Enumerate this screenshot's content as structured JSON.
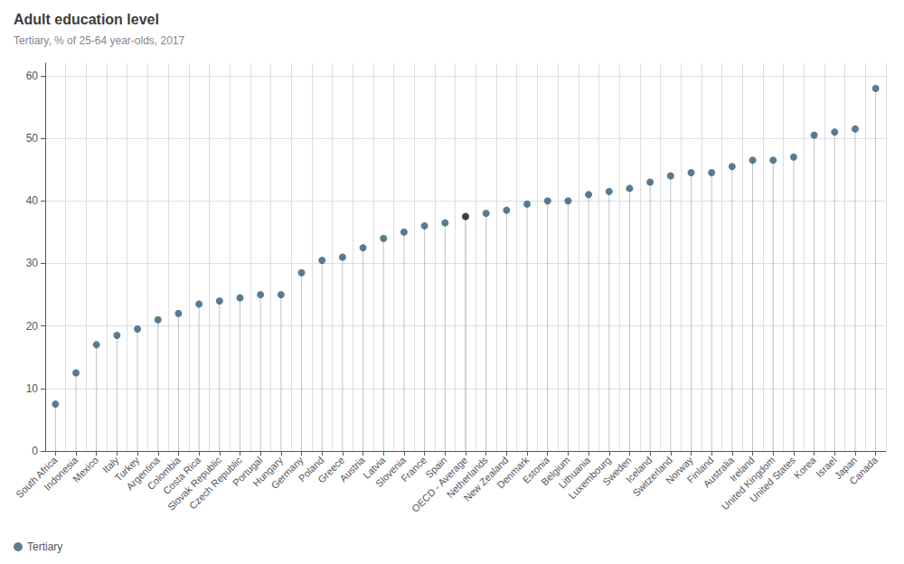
{
  "chart_data": {
    "type": "lollipop",
    "title": "Adult education level",
    "subtitle": "Tertiary, % of 25-64 year-olds, 2017",
    "categories": [
      "South Africa",
      "Indonesia",
      "Mexico",
      "Italy",
      "Turkey",
      "Argentina",
      "Colombia",
      "Costa Rica",
      "Slovak Republic",
      "Czech Republic",
      "Portugal",
      "Hungary",
      "Germany",
      "Poland",
      "Greece",
      "Austria",
      "Latvia",
      "Slovenia",
      "France",
      "Spain",
      "OECD - Average",
      "Netherlands",
      "New Zealand",
      "Denmark",
      "Estonia",
      "Belgium",
      "Lithuania",
      "Luxembourg",
      "Sweden",
      "Iceland",
      "Switzerland",
      "Norway",
      "Finland",
      "Australia",
      "Ireland",
      "United Kingdom",
      "United States",
      "Korea",
      "Israel",
      "Japan",
      "Canada"
    ],
    "series": [
      {
        "name": "Tertiary",
        "color": "#2e5c78",
        "colors": [
          "#2e5c78",
          "#2e5c78",
          "#2e5c78",
          "#2e5c78",
          "#2e5c78",
          "#2e5c78",
          "#2e5c78",
          "#2e5c78",
          "#2e5c78",
          "#2e5c78",
          "#2e5c78",
          "#2e5c78",
          "#2e5c78",
          "#2e5c78",
          "#2e5c78",
          "#2e5c78",
          "#2e5c78",
          "#2e5c78",
          "#2e5c78",
          "#2e5c78",
          "#111111",
          "#2e5c78",
          "#2e5c78",
          "#2e5c78",
          "#2e5c78",
          "#2e5c78",
          "#2e5c78",
          "#2e5c78",
          "#2e5c78",
          "#2e5c78",
          "#2e5c78",
          "#2e5c78",
          "#2e5c78",
          "#2e5c78",
          "#2e5c78",
          "#2e5c78",
          "#2e5c78",
          "#2e5c78",
          "#2e5c78",
          "#2e5c78",
          "#2e5c78"
        ],
        "values": [
          7.5,
          12.5,
          17.0,
          18.5,
          19.5,
          21.0,
          22.0,
          23.5,
          24.0,
          24.5,
          25.0,
          25.0,
          28.5,
          30.5,
          31.0,
          32.5,
          34.0,
          35.0,
          36.0,
          36.5,
          37.5,
          38.0,
          38.5,
          39.5,
          40.0,
          40.0,
          41.0,
          41.5,
          42.0,
          43.0,
          44.0,
          44.5,
          44.5,
          45.5,
          46.5,
          46.5,
          47.0,
          50.5,
          51.0,
          51.5,
          58.0
        ]
      }
    ],
    "ylim": [
      0,
      62
    ],
    "yticks": [
      0,
      10,
      20,
      30,
      40,
      50,
      60
    ],
    "grid": true,
    "legend": "lower left"
  }
}
